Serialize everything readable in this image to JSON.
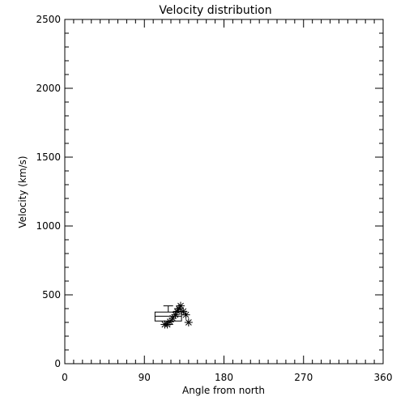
{
  "chart_data": {
    "type": "scatter",
    "title": "Velocity distribution",
    "xlabel": "Angle from north",
    "ylabel": "Velocity (km/s)",
    "xlim": [
      0,
      360
    ],
    "ylim": [
      0,
      2500
    ],
    "x_ticks": [
      0,
      90,
      180,
      270,
      360
    ],
    "y_ticks": [
      0,
      500,
      1000,
      1500,
      2000,
      2500
    ],
    "x_minor_step": 10,
    "y_minor_step": 100,
    "grid": false,
    "points": [
      {
        "x": 113,
        "y": 285
      },
      {
        "x": 116,
        "y": 285
      },
      {
        "x": 119,
        "y": 305
      },
      {
        "x": 122,
        "y": 330
      },
      {
        "x": 125,
        "y": 355
      },
      {
        "x": 127,
        "y": 380
      },
      {
        "x": 129,
        "y": 400
      },
      {
        "x": 131,
        "y": 420
      },
      {
        "x": 134,
        "y": 380
      },
      {
        "x": 137,
        "y": 355
      },
      {
        "x": 140,
        "y": 300
      }
    ],
    "boxplot": {
      "x_range": [
        102,
        132
      ],
      "whisker_low": 285,
      "q1": 310,
      "median": 345,
      "q3": 375,
      "whisker_high": 420
    }
  }
}
